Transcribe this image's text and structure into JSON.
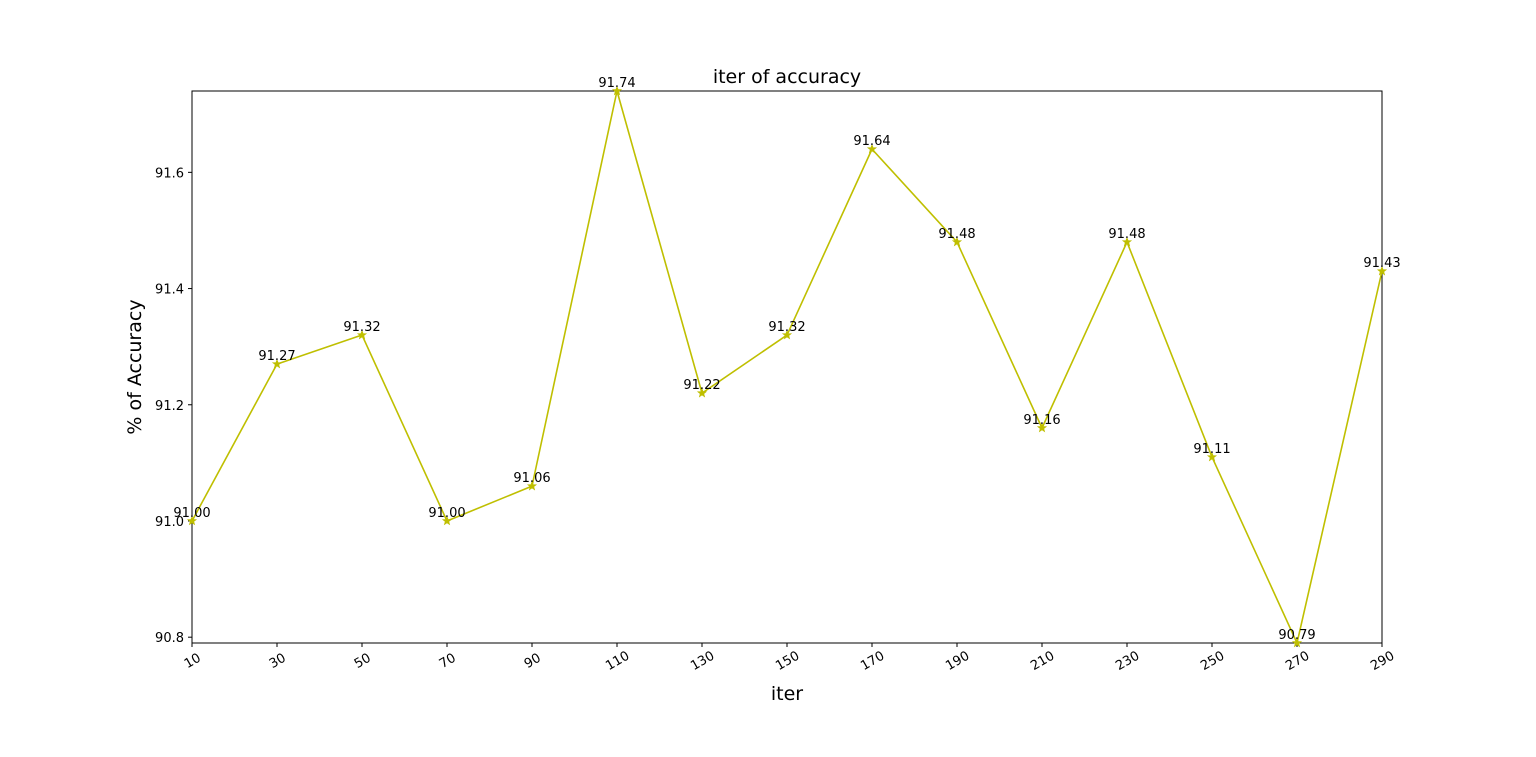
{
  "chart_data": {
    "type": "line",
    "title": "iter of accuracy",
    "xlabel": "iter",
    "ylabel": "% of Accuracy",
    "x": [
      10,
      30,
      50,
      70,
      90,
      110,
      130,
      150,
      170,
      190,
      210,
      230,
      250,
      270,
      290
    ],
    "values": [
      91.0,
      91.27,
      91.32,
      91.0,
      91.06,
      91.74,
      91.22,
      91.32,
      91.64,
      91.48,
      91.16,
      91.48,
      91.11,
      90.79,
      91.43
    ],
    "data_labels": [
      "91.00",
      "91.27",
      "91.32",
      "91.00",
      "91.06",
      "91.74",
      "91.22",
      "91.32",
      "91.64",
      "91.48",
      "91.16",
      "91.48",
      "91.11",
      "90.79",
      "91.43"
    ],
    "xlim": [
      10,
      290
    ],
    "ylim": [
      90.79,
      91.74
    ],
    "xticks": [
      "10",
      "30",
      "50",
      "70",
      "90",
      "110",
      "130",
      "150",
      "170",
      "190",
      "210",
      "230",
      "250",
      "270",
      "290"
    ],
    "yticks": [
      {
        "value": 90.8,
        "label": "90.8"
      },
      {
        "value": 91.0,
        "label": "91.0"
      },
      {
        "value": 91.2,
        "label": "91.2"
      },
      {
        "value": 91.4,
        "label": "91.4"
      },
      {
        "value": 91.6,
        "label": "91.6"
      }
    ],
    "line_color": "#bfbf00",
    "marker": "star",
    "grid": false,
    "legend": "none"
  }
}
